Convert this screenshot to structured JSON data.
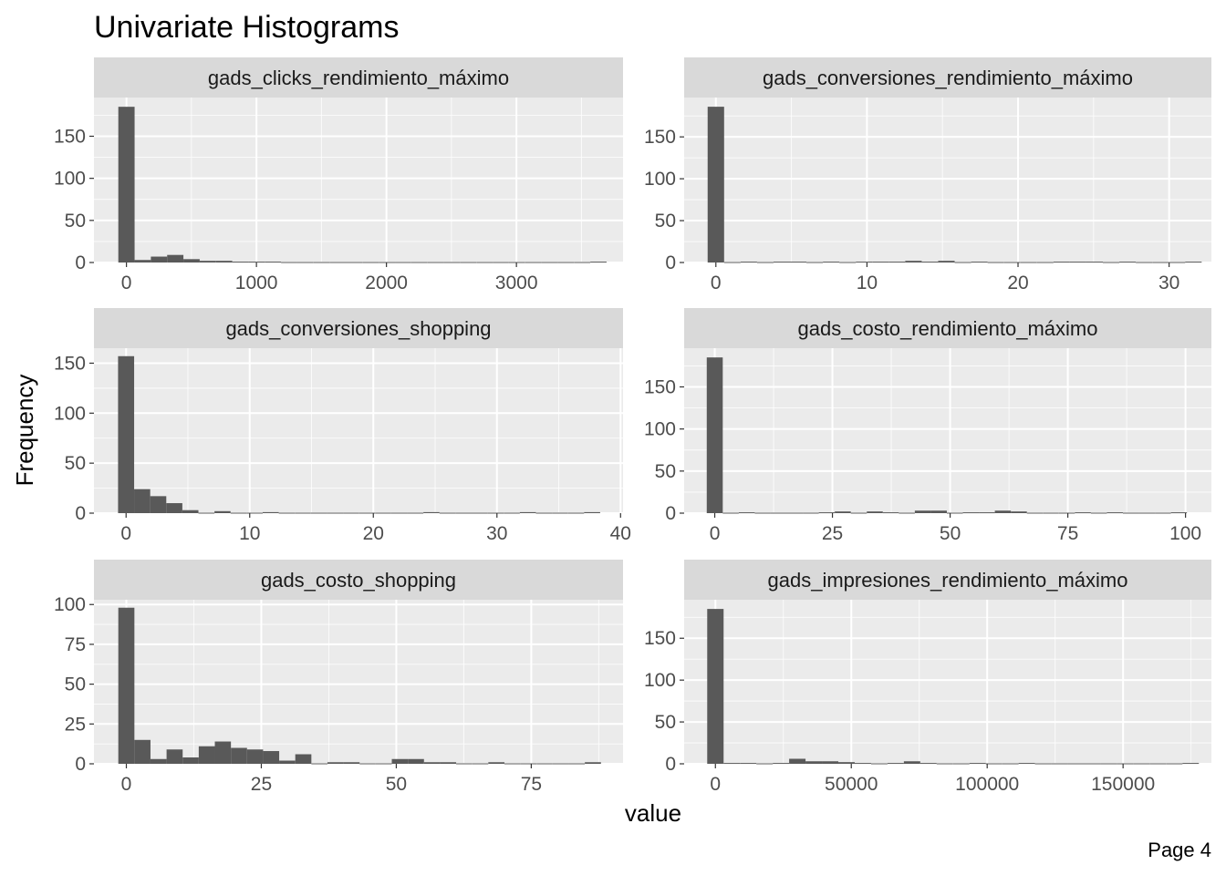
{
  "page": {
    "title": "Univariate Histograms",
    "xlabel": "value",
    "ylabel": "Frequency",
    "page_label": "Page 4"
  },
  "style": {
    "panel_bg": "#ebebeb",
    "strip_bg": "#d9d9d9",
    "grid_major": "#ffffff",
    "bar_fill": "#595959",
    "tick_color": "#333333"
  },
  "chart_data": [
    {
      "type": "bar",
      "title": "gads_clicks_rendimiento_máximo",
      "bin_width": 125.2,
      "centers": [
        0,
        125.2,
        250.4,
        375.6,
        500.8,
        626,
        751.2,
        876.4,
        1001.6,
        1126.8,
        1252,
        1377.2,
        1502.4,
        1627.6,
        1752.8,
        1878,
        2003.2,
        2128.4,
        2253.6,
        2378.8,
        2504,
        2629.2,
        2754.4,
        2879.6,
        3004.8,
        3130,
        3255.2,
        3380.4,
        3505.6,
        3630.8
      ],
      "values": [
        185,
        3,
        7,
        9,
        4,
        2,
        2,
        1,
        1,
        1,
        0,
        0,
        0,
        0,
        0,
        0,
        0,
        0,
        0,
        0,
        0,
        0,
        0,
        0,
        0,
        0,
        0,
        0,
        0,
        1
      ],
      "xlim": [
        -250,
        3820
      ],
      "ylim": [
        0,
        196
      ],
      "x_ticks": [
        0,
        1000,
        2000,
        3000
      ],
      "x_tick_labels": [
        "0",
        "1000",
        "2000",
        "3000"
      ],
      "y_ticks": [
        0,
        50,
        100,
        150
      ],
      "y_tick_labels": [
        "0",
        "50",
        "100",
        "150"
      ]
    },
    {
      "type": "bar",
      "title": "gads_conversiones_rendimiento_máximo",
      "bin_width": 1.09,
      "centers": [
        0,
        1.09,
        2.18,
        3.27,
        4.36,
        5.45,
        6.54,
        7.63,
        8.72,
        9.81,
        10.9,
        11.99,
        13.08,
        14.17,
        15.26,
        16.35,
        17.44,
        18.53,
        19.62,
        20.71,
        21.8,
        22.89,
        23.98,
        25.07,
        26.16,
        27.25,
        28.34,
        29.43,
        30.52,
        31.61
      ],
      "values": [
        186,
        0,
        1,
        0,
        1,
        1,
        0,
        1,
        0,
        1,
        1,
        1,
        2,
        1,
        2,
        0,
        1,
        0,
        0,
        0,
        0,
        1,
        1,
        1,
        0,
        1,
        0,
        0,
        0,
        1
      ],
      "xlim": [
        -2.1,
        32.8
      ],
      "ylim": [
        0,
        197
      ],
      "x_ticks": [
        0,
        10,
        20,
        30
      ],
      "x_tick_labels": [
        "0",
        "10",
        "20",
        "30"
      ],
      "y_ticks": [
        0,
        50,
        100,
        150
      ],
      "y_tick_labels": [
        "0",
        "50",
        "100",
        "150"
      ]
    },
    {
      "type": "bar",
      "title": "gads_conversiones_shopping",
      "bin_width": 1.3,
      "centers": [
        0,
        1.3,
        2.6,
        3.9,
        5.2,
        6.5,
        7.8,
        9.1,
        10.4,
        11.7,
        13,
        14.3,
        15.6,
        16.9,
        18.2,
        19.5,
        20.8,
        22.1,
        23.4,
        24.7,
        26,
        27.3,
        28.6,
        29.9,
        31.2,
        32.5,
        33.8,
        35.1,
        36.4,
        37.7
      ],
      "values": [
        157,
        24,
        17,
        10,
        3,
        0,
        2,
        0,
        0,
        1,
        0,
        0,
        0,
        0,
        0,
        0,
        0,
        0,
        0,
        1,
        0,
        0,
        0,
        0,
        0,
        1,
        0,
        0,
        0,
        1
      ],
      "xlim": [
        -2.6,
        40.2
      ],
      "ylim": [
        0,
        165
      ],
      "x_ticks": [
        0,
        10,
        20,
        30,
        40
      ],
      "x_tick_labels": [
        "0",
        "10",
        "20",
        "30",
        "40"
      ],
      "y_ticks": [
        0,
        50,
        100,
        150
      ],
      "y_tick_labels": [
        "0",
        "50",
        "100",
        "150"
      ]
    },
    {
      "type": "bar",
      "title": "gads_costo_rendimiento_máximo",
      "bin_width": 3.4,
      "centers": [
        0,
        3.4,
        6.8,
        10.2,
        13.6,
        17,
        20.4,
        23.8,
        27.2,
        30.6,
        34,
        37.4,
        40.8,
        44.2,
        47.6,
        51,
        54.4,
        57.8,
        61.2,
        64.6,
        68,
        71.4,
        74.8,
        78.2,
        81.6,
        85,
        88.4,
        91.8,
        95.2,
        98.6
      ],
      "values": [
        185,
        0,
        1,
        0,
        0,
        0,
        0,
        1,
        2,
        0,
        2,
        1,
        0,
        3,
        3,
        0,
        1,
        1,
        3,
        2,
        0,
        0,
        0,
        1,
        0,
        1,
        0,
        0,
        0,
        1
      ],
      "xlim": [
        -6.5,
        105.5
      ],
      "ylim": [
        0,
        196
      ],
      "x_ticks": [
        0,
        25,
        50,
        75,
        100
      ],
      "x_tick_labels": [
        "0",
        "25",
        "50",
        "75",
        "100"
      ],
      "y_ticks": [
        0,
        50,
        100,
        150
      ],
      "y_tick_labels": [
        "0",
        "50",
        "100",
        "150"
      ]
    },
    {
      "type": "bar",
      "title": "gads_costo_shopping",
      "bin_width": 2.98,
      "centers": [
        0,
        2.98,
        5.96,
        8.94,
        11.92,
        14.9,
        17.88,
        20.86,
        23.84,
        26.82,
        29.8,
        32.78,
        35.76,
        38.74,
        41.72,
        44.7,
        47.68,
        50.66,
        53.64,
        56.62,
        59.6,
        62.58,
        65.56,
        68.54,
        71.52,
        74.5,
        77.48,
        80.46,
        83.44,
        86.42
      ],
      "values": [
        98,
        15,
        3,
        9,
        4,
        11,
        14,
        10,
        9,
        8,
        2,
        6,
        0,
        1,
        1,
        0,
        0,
        3,
        3,
        1,
        1,
        0,
        0,
        1,
        0,
        0,
        0,
        0,
        0,
        1
      ],
      "xlim": [
        -6,
        92
      ],
      "ylim": [
        0,
        103
      ],
      "x_ticks": [
        0,
        25,
        50,
        75
      ],
      "x_tick_labels": [
        "0",
        "25",
        "50",
        "75"
      ],
      "y_ticks": [
        0,
        25,
        50,
        75,
        100
      ],
      "y_tick_labels": [
        "0",
        "25",
        "50",
        "75",
        "100"
      ]
    },
    {
      "type": "bar",
      "title": "gads_impresiones_rendimiento_máximo",
      "bin_width": 6030,
      "centers": [
        0,
        6030,
        12060,
        18090,
        24120,
        30150,
        36180,
        42210,
        48240,
        54270,
        60300,
        66330,
        72360,
        78390,
        84420,
        90450,
        96480,
        102510,
        108540,
        114570,
        120600,
        126630,
        132660,
        138690,
        144720,
        150750,
        156780,
        162810,
        168840,
        174870
      ],
      "values": [
        185,
        1,
        1,
        0,
        1,
        6,
        3,
        3,
        2,
        1,
        0,
        1,
        3,
        1,
        0,
        0,
        1,
        0,
        0,
        1,
        0,
        0,
        0,
        0,
        0,
        0,
        0,
        0,
        0,
        1
      ],
      "xlim": [
        -11500,
        182500
      ],
      "ylim": [
        0,
        196
      ],
      "x_ticks": [
        0,
        50000,
        100000,
        150000
      ],
      "x_tick_labels": [
        "0",
        "50000",
        "100000",
        "150000"
      ],
      "y_ticks": [
        0,
        50,
        100,
        150
      ],
      "y_tick_labels": [
        "0",
        "50",
        "100",
        "150"
      ]
    }
  ]
}
